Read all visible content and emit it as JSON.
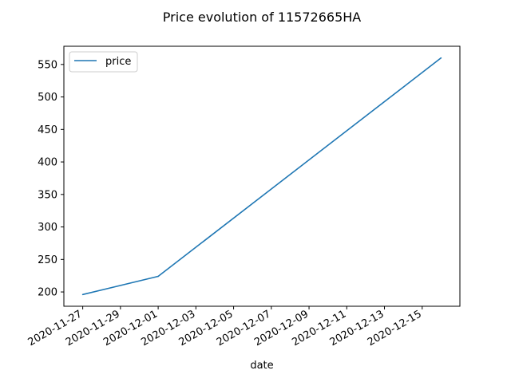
{
  "chart_data": {
    "type": "line",
    "title": "Price evolution of 11572665HA",
    "xlabel": "date",
    "ylabel": "",
    "x_type": "date",
    "series": [
      {
        "name": "price",
        "color": "#1f77b4",
        "x": [
          "2020-11-27",
          "2020-12-01",
          "2020-12-16"
        ],
        "values": [
          196,
          224,
          560
        ]
      }
    ],
    "xlim": [
      "2020-11-26",
      "2020-12-17"
    ],
    "ylim": [
      178,
      578
    ],
    "x_ticks": [
      "2020-11-27",
      "2020-11-29",
      "2020-12-01",
      "2020-12-03",
      "2020-12-05",
      "2020-12-07",
      "2020-12-09",
      "2020-12-11",
      "2020-12-13",
      "2020-12-15"
    ],
    "y_ticks": [
      200,
      250,
      300,
      350,
      400,
      450,
      500,
      550
    ],
    "legend": {
      "position": "top-left",
      "entries": [
        "price"
      ]
    },
    "grid": false
  }
}
